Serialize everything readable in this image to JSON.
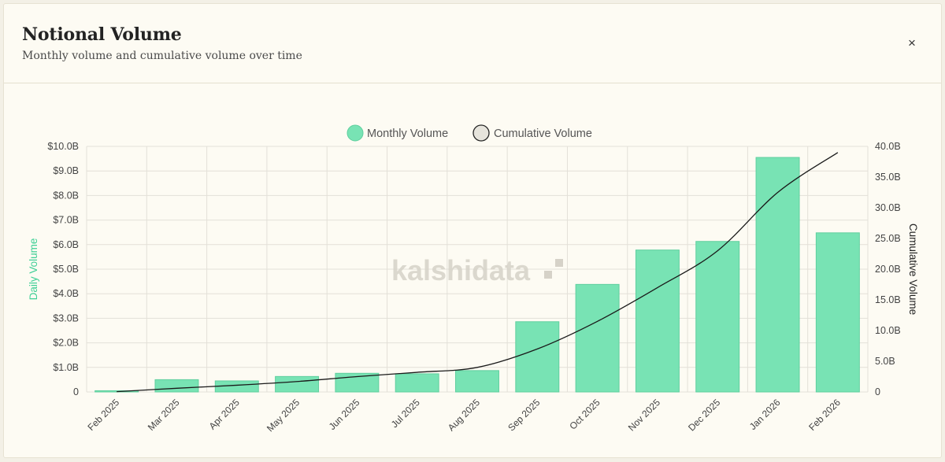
{
  "header": {
    "title": "Notional Volume",
    "subtitle": "Monthly volume and cumulative volume over time",
    "close_label": "×"
  },
  "colors": {
    "bar_fill": "#78e3b4",
    "bar_stroke": "#5fcf9e",
    "line": "#1a1a1a",
    "left_axis_title": "#3ecf95",
    "grid": "#e3e0d8"
  },
  "chart_data": {
    "type": "bar",
    "watermark": "kalshidata",
    "legend": {
      "position": "top",
      "items": [
        {
          "label": "Monthly Volume",
          "marker": "circle",
          "color": "#78e3b4"
        },
        {
          "label": "Cumulative Volume",
          "marker": "circle",
          "color": "#e6e4dc"
        }
      ]
    },
    "categories": [
      "Feb 2025",
      "Mar 2025",
      "Apr 2025",
      "May 2025",
      "Jun 2025",
      "Jul 2025",
      "Aug 2025",
      "Sep 2025",
      "Oct 2025",
      "Nov 2025",
      "Dec 2025",
      "Jan 2026",
      "Feb 2026"
    ],
    "series": [
      {
        "name": "Monthly Volume",
        "type": "bar",
        "axis": "left",
        "values": [
          0.05,
          0.5,
          0.45,
          0.63,
          0.76,
          0.74,
          0.87,
          2.86,
          4.38,
          5.78,
          6.13,
          9.55,
          6.48
        ]
      },
      {
        "name": "Cumulative Volume",
        "type": "line",
        "axis": "right",
        "values": [
          0.05,
          0.6,
          1.1,
          1.7,
          2.5,
          3.2,
          4.0,
          7.0,
          11.5,
          17.0,
          23.0,
          32.5,
          39.0
        ]
      }
    ],
    "y_left": {
      "label": "Daily Volume",
      "range": [
        0,
        10
      ],
      "ticks": [
        "0",
        "$1.0B",
        "$2.0B",
        "$3.0B",
        "$4.0B",
        "$5.0B",
        "$6.0B",
        "$7.0B",
        "$8.0B",
        "$9.0B",
        "$10.0B"
      ]
    },
    "y_right": {
      "label": "Cumulative Volume",
      "range": [
        0,
        40
      ],
      "ticks": [
        "0",
        "5.0B",
        "10.0B",
        "15.0B",
        "20.0B",
        "25.0B",
        "30.0B",
        "35.0B",
        "40.0B"
      ]
    },
    "grid": true
  }
}
